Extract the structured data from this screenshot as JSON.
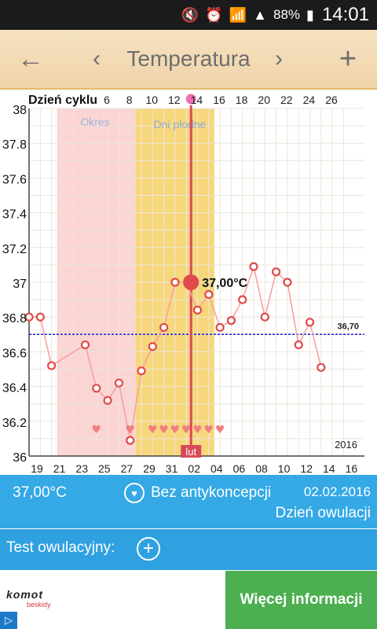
{
  "status_bar": {
    "battery": "88%",
    "time": "14:01"
  },
  "toolbar": {
    "title": "Temperatura"
  },
  "chart": {
    "cycle_label": "Dzień cyklu",
    "cycle_days": [
      "6",
      "8",
      "10",
      "12",
      "14",
      "16",
      "18",
      "20",
      "22",
      "24",
      "26"
    ],
    "period_label": "Okres",
    "fertile_label": "Dni płodne",
    "y_ticks": [
      "38",
      "37.8",
      "37.6",
      "37.4",
      "37.2",
      "37",
      "36.8",
      "36.6",
      "36.4",
      "36.2",
      "36"
    ],
    "x_ticks": [
      "19",
      "21",
      "23",
      "25",
      "27",
      "29",
      "31",
      "02",
      "04",
      "06",
      "08",
      "10",
      "12",
      "14",
      "16"
    ],
    "month_label": "lut",
    "year_label": "2016",
    "coverline_label": "36,70",
    "selected_label": "37,00°C"
  },
  "chart_data": {
    "type": "line",
    "x": [
      "19",
      "20",
      "21",
      "24",
      "25",
      "26",
      "27",
      "28",
      "29",
      "30",
      "31",
      "01",
      "02",
      "03",
      "04",
      "05",
      "06",
      "07",
      "08",
      "09",
      "10",
      "11",
      "12",
      "13",
      "14"
    ],
    "values": [
      36.8,
      36.8,
      36.52,
      36.64,
      36.39,
      36.32,
      36.42,
      36.09,
      36.49,
      36.63,
      36.74,
      37.0,
      37.0,
      36.84,
      36.93,
      36.74,
      36.78,
      36.9,
      37.09,
      36.8,
      37.06,
      37.0,
      36.64,
      36.77,
      36.51
    ],
    "ylim": [
      36.0,
      38.0
    ],
    "coverline": 36.7,
    "period_range": [
      "21",
      "28"
    ],
    "fertile_range": [
      "28",
      "04"
    ],
    "ovulation_day": "02",
    "intercourse_days": [
      "25",
      "28",
      "30",
      "31",
      "01",
      "02",
      "03",
      "04",
      "05"
    ],
    "grid": true,
    "colors": {
      "line": "#f5a3a0",
      "marker": "#e04a4a",
      "period": "#fcd4d4",
      "fertile": "#f7d77c",
      "coverline": "#1a1ad6"
    }
  },
  "info": {
    "temperature": "37,00°C",
    "contraception": "Bez antykoncepcji",
    "date": "02.02.2016",
    "status": "Dzień owulacji",
    "test_label": "Test owulacyjny:"
  },
  "ad": {
    "logo_main": "komot",
    "logo_sub": "beskidy",
    "cta": "Więcej informacji"
  }
}
